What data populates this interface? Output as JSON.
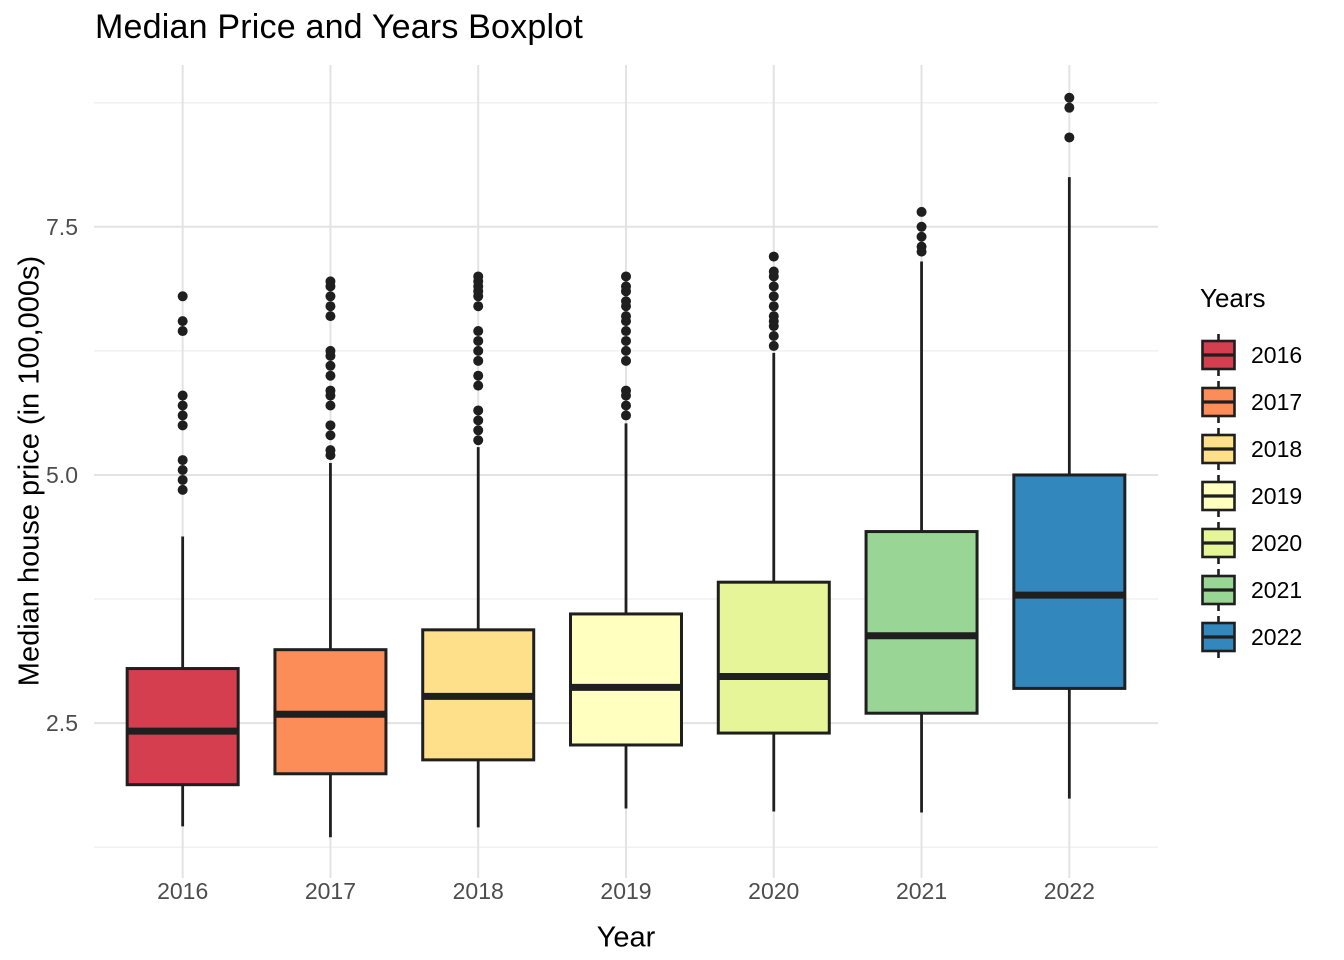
{
  "title": "Median Price and Years Boxplot",
  "chart_data": {
    "type": "boxplot",
    "title": "Median Price and Years Boxplot",
    "xlabel": "Year",
    "ylabel": "Median house price (in 100,000s)",
    "legend": {
      "title": "Years",
      "position": "right"
    },
    "grid": true,
    "y_axis": {
      "domain": [
        0.94,
        9.13
      ],
      "major_ticks": [
        {
          "value": 2.5,
          "label": "2.5"
        },
        {
          "value": 5.0,
          "label": "5.0"
        },
        {
          "value": 7.5,
          "label": "7.5"
        }
      ],
      "minor_ticks": [
        1.25,
        3.75,
        6.25,
        8.75
      ]
    },
    "categories": [
      "2016",
      "2017",
      "2018",
      "2019",
      "2020",
      "2021",
      "2022"
    ],
    "ink_color": "#1f1f1f",
    "grid_major_color": "#e3e3e3",
    "grid_minor_color": "#f1f1f1",
    "series": [
      {
        "year": "2016",
        "color": "#d53e4f",
        "whisker_low": 1.46,
        "q1": 1.88,
        "median": 2.42,
        "q3": 3.05,
        "whisker_high": 4.38,
        "outliers": [
          4.85,
          4.95,
          5.05,
          5.15,
          5.5,
          5.6,
          5.7,
          5.8,
          6.45,
          6.55,
          6.8
        ]
      },
      {
        "year": "2017",
        "color": "#fc8d59",
        "whisker_low": 1.35,
        "q1": 1.99,
        "median": 2.59,
        "q3": 3.24,
        "whisker_high": 5.12,
        "outliers": [
          5.2,
          5.25,
          5.4,
          5.5,
          5.7,
          5.8,
          5.85,
          6.0,
          6.1,
          6.2,
          6.25,
          6.6,
          6.7,
          6.8,
          6.9,
          6.95
        ]
      },
      {
        "year": "2018",
        "color": "#fee08b",
        "whisker_low": 1.45,
        "q1": 2.13,
        "median": 2.77,
        "q3": 3.44,
        "whisker_high": 5.28,
        "outliers": [
          5.35,
          5.45,
          5.55,
          5.65,
          5.9,
          6.0,
          6.15,
          6.25,
          6.35,
          6.45,
          6.7,
          6.8,
          6.85,
          6.9,
          6.95,
          7.0
        ]
      },
      {
        "year": "2019",
        "color": "#ffffbf",
        "whisker_low": 1.64,
        "q1": 2.28,
        "median": 2.86,
        "q3": 3.6,
        "whisker_high": 5.52,
        "outliers": [
          5.6,
          5.7,
          5.8,
          5.85,
          6.15,
          6.25,
          6.35,
          6.45,
          6.55,
          6.6,
          6.7,
          6.75,
          6.85,
          6.9,
          7.0
        ]
      },
      {
        "year": "2020",
        "color": "#e6f598",
        "whisker_low": 1.61,
        "q1": 2.4,
        "median": 2.97,
        "q3": 3.92,
        "whisker_high": 6.23,
        "outliers": [
          6.3,
          6.4,
          6.5,
          6.55,
          6.6,
          6.7,
          6.8,
          6.9,
          7.0,
          7.05,
          7.2
        ]
      },
      {
        "year": "2021",
        "color": "#99d594",
        "whisker_low": 1.6,
        "q1": 2.6,
        "median": 3.38,
        "q3": 4.43,
        "whisker_high": 7.15,
        "outliers": [
          7.25,
          7.3,
          7.4,
          7.5,
          7.65
        ]
      },
      {
        "year": "2022",
        "color": "#3288bd",
        "whisker_low": 1.74,
        "q1": 2.85,
        "median": 3.79,
        "q3": 5.0,
        "whisker_high": 8.0,
        "outliers": [
          8.4,
          8.7,
          8.8
        ]
      }
    ]
  }
}
